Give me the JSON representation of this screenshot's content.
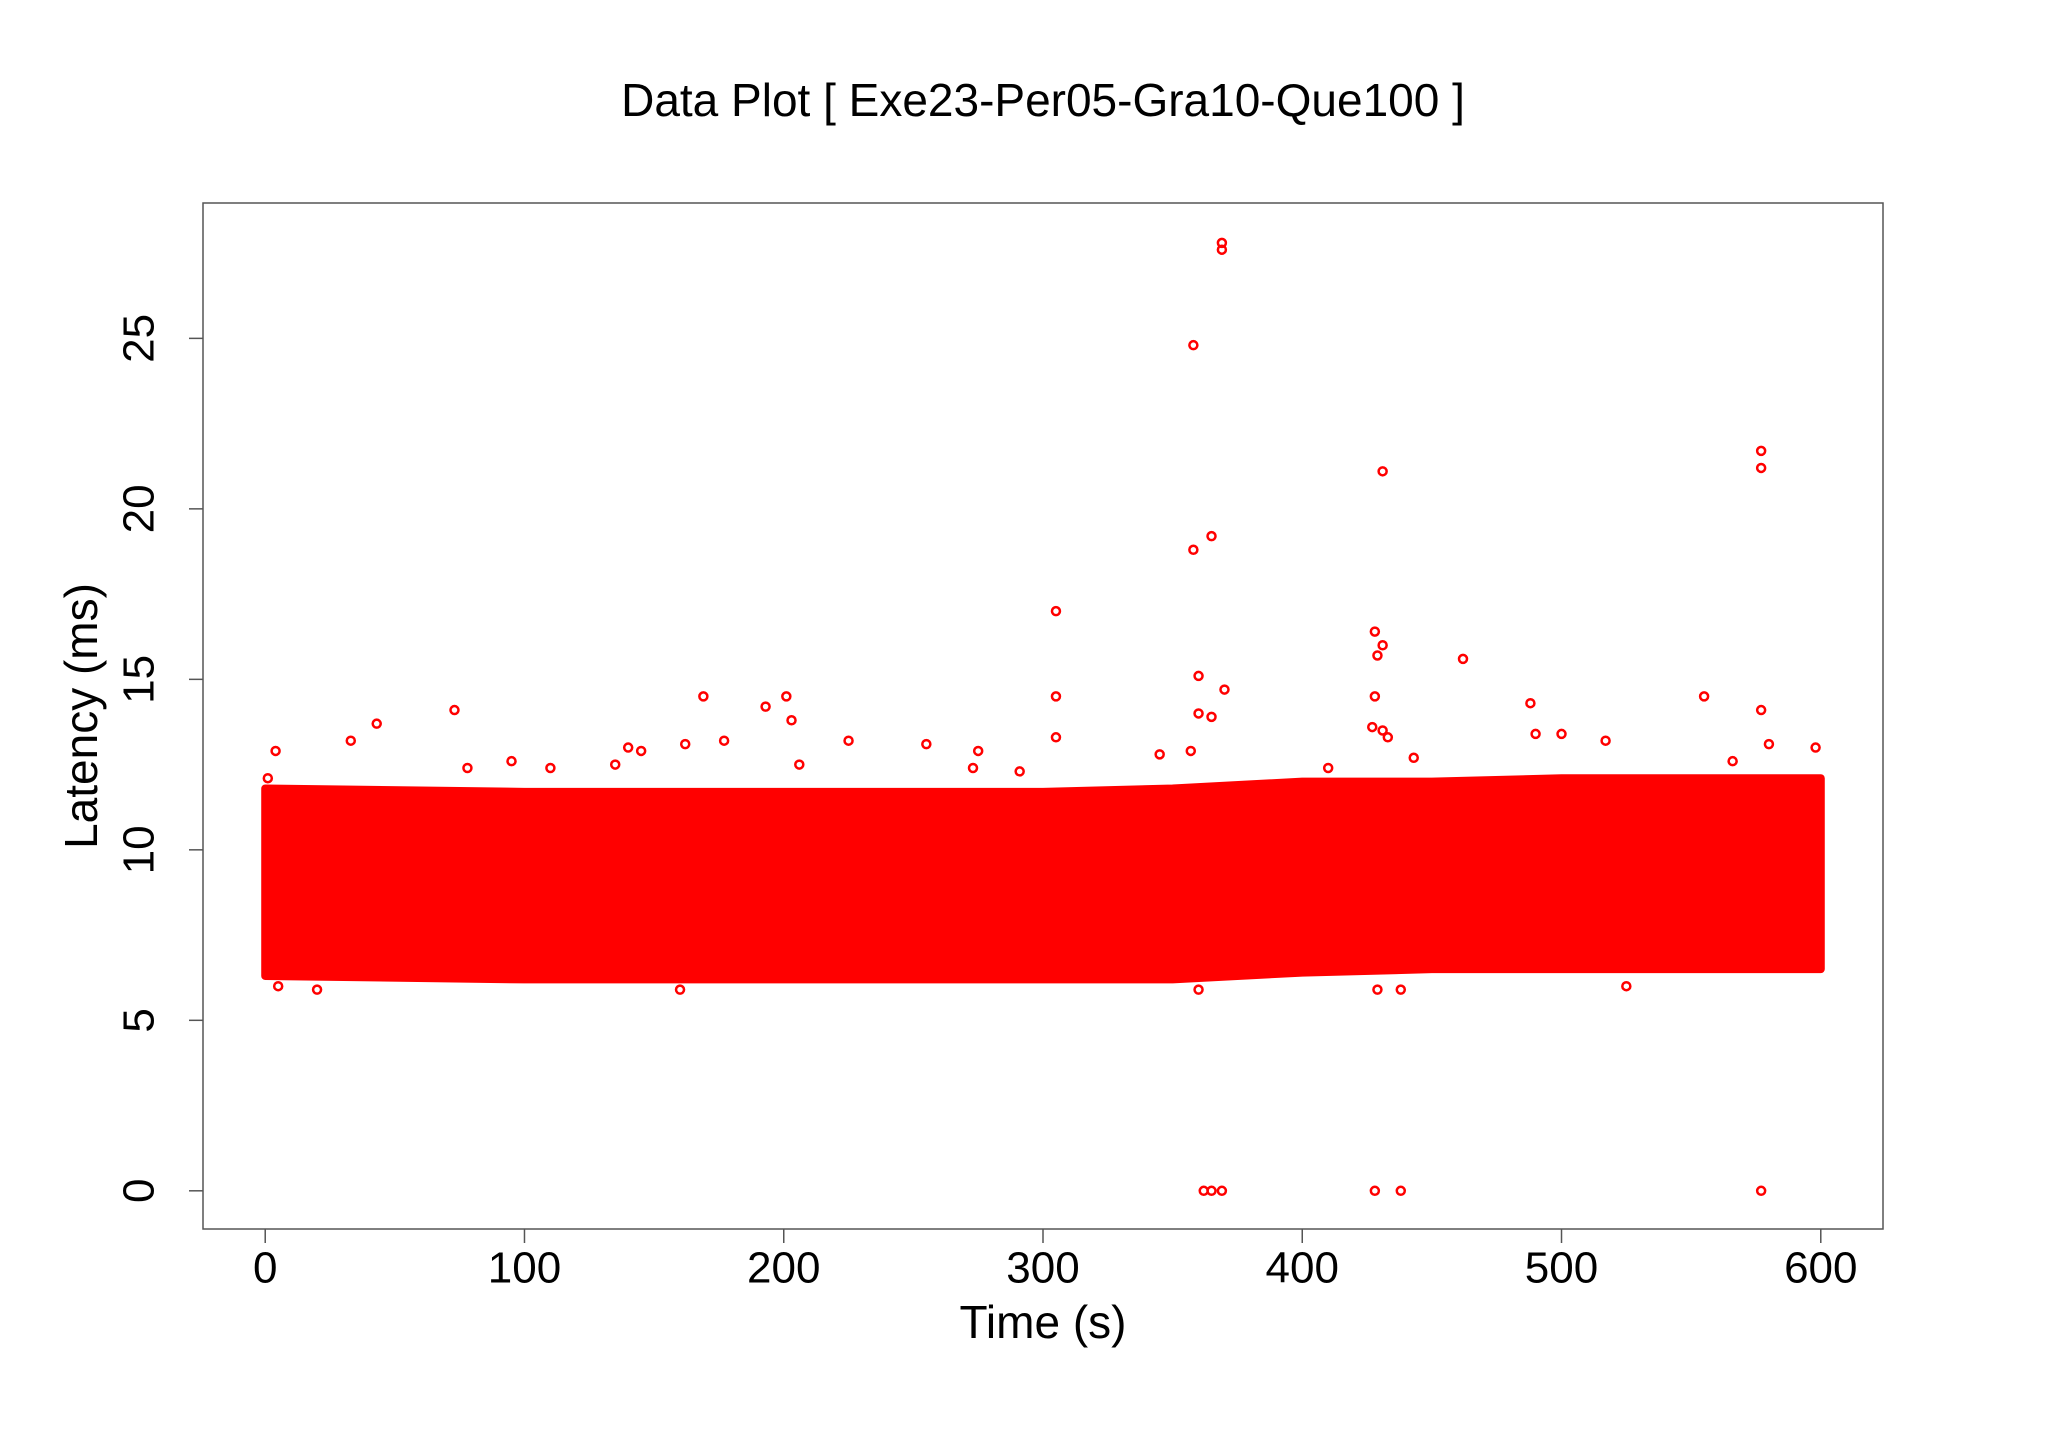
{
  "chart_data": {
    "type": "scatter",
    "title": "Data Plot [ Exe23-Per05-Gra10-Que100 ]",
    "xlabel": "Time (s)",
    "ylabel": "Latency (ms)",
    "xlim": [
      -24,
      624
    ],
    "ylim": [
      -1.12,
      28.97
    ],
    "xticks": [
      0,
      100,
      200,
      300,
      400,
      500,
      600
    ],
    "yticks": [
      0,
      5,
      10,
      15,
      20,
      25
    ],
    "series": [
      {
        "type": "range",
        "color": "#ff0000",
        "x": [
          0,
          100,
          200,
          300,
          350,
          400,
          450,
          500,
          600
        ],
        "high": [
          11.8,
          11.7,
          11.7,
          11.7,
          11.8,
          12.0,
          12.0,
          12.1,
          12.1
        ],
        "low": [
          6.3,
          6.2,
          6.2,
          6.2,
          6.2,
          6.4,
          6.5,
          6.5,
          6.5
        ]
      },
      {
        "type": "scatter",
        "color": "#ff0000",
        "x": [
          1,
          4,
          33,
          43,
          73,
          78,
          95,
          110,
          135,
          140,
          145,
          162,
          169,
          177,
          193,
          201,
          203,
          206,
          225,
          255,
          273,
          275,
          291,
          305,
          305,
          305,
          345,
          357,
          358,
          358,
          360,
          360,
          365,
          365,
          369,
          369,
          370,
          410,
          427,
          428,
          428,
          429,
          431,
          431,
          431,
          433,
          443,
          462,
          488,
          490,
          500,
          517,
          555,
          566,
          577,
          577,
          577,
          580,
          598,
          362,
          365,
          369,
          428,
          438,
          577,
          5,
          20,
          160,
          360,
          429,
          438,
          525
        ],
        "values": [
          12.1,
          12.9,
          13.2,
          13.7,
          14.1,
          12.4,
          12.6,
          12.4,
          12.5,
          13.0,
          12.9,
          13.1,
          14.5,
          13.2,
          14.2,
          14.5,
          13.8,
          12.5,
          13.2,
          13.1,
          12.4,
          12.9,
          12.3,
          17.0,
          14.5,
          13.3,
          12.8,
          12.9,
          24.8,
          18.8,
          15.1,
          14.0,
          19.2,
          13.9,
          27.8,
          27.6,
          14.7,
          12.4,
          13.6,
          16.4,
          14.5,
          15.7,
          21.1,
          16.0,
          13.5,
          13.3,
          12.7,
          15.6,
          14.3,
          13.4,
          13.4,
          13.2,
          14.5,
          12.6,
          21.7,
          21.2,
          14.1,
          13.1,
          13.0,
          0,
          0,
          0,
          0,
          0,
          0,
          6.0,
          5.9,
          5.9,
          5.9,
          5.9,
          5.9,
          6.0
        ]
      }
    ]
  }
}
